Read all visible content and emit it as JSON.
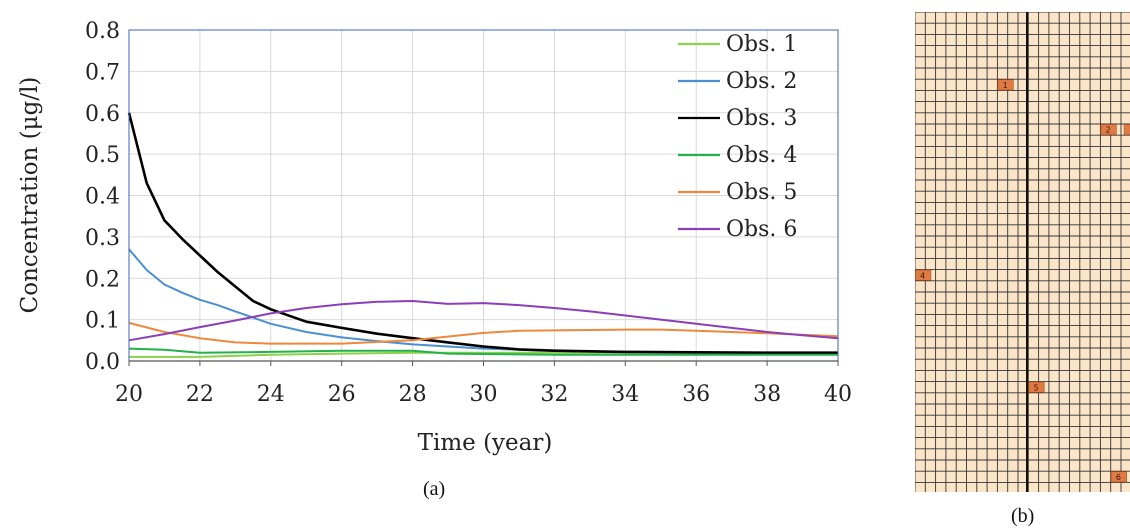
{
  "chart_data": {
    "type": "line",
    "xlabel": "Time (year)",
    "ylabel": "Concentration (μg/l)",
    "xlim": [
      20,
      40
    ],
    "ylim": [
      0,
      0.8
    ],
    "xticks": [
      20,
      22,
      24,
      26,
      28,
      30,
      32,
      34,
      36,
      38,
      40
    ],
    "xtick_labels": [
      "20",
      "22",
      "24",
      "26",
      "28",
      "30",
      "32",
      "34",
      "36",
      "38",
      "40"
    ],
    "yticks": [
      0,
      0.1,
      0.2,
      0.3,
      0.4,
      0.5,
      0.6,
      0.7,
      0.8
    ],
    "ytick_labels": [
      "0.0",
      "0.1",
      "0.2",
      "0.3",
      "0.4",
      "0.5",
      "0.6",
      "0.7",
      "0.8"
    ],
    "grid": true,
    "legend_position": "top-right",
    "series": [
      {
        "name": "Obs. 1",
        "color": "#8cd14b",
        "x": [
          20,
          22,
          24,
          26,
          28,
          30,
          32,
          34,
          36,
          38,
          40
        ],
        "y": [
          0.01,
          0.01,
          0.015,
          0.018,
          0.02,
          0.02,
          0.02,
          0.02,
          0.02,
          0.02,
          0.02
        ]
      },
      {
        "name": "Obs. 2",
        "color": "#4a90d0",
        "x": [
          20,
          20.5,
          21,
          21.5,
          22,
          22.5,
          23,
          23.5,
          24,
          25,
          26,
          27,
          28,
          30,
          32,
          34,
          36,
          38,
          40
        ],
        "y": [
          0.27,
          0.22,
          0.185,
          0.165,
          0.148,
          0.135,
          0.12,
          0.105,
          0.09,
          0.07,
          0.057,
          0.048,
          0.04,
          0.03,
          0.025,
          0.022,
          0.02,
          0.02,
          0.02
        ]
      },
      {
        "name": "Obs. 3",
        "color": "#000000",
        "x": [
          20,
          20.5,
          21,
          21.5,
          22,
          22.5,
          23,
          23.5,
          24,
          25,
          26,
          27,
          28,
          29,
          30,
          31,
          32,
          34,
          36,
          38,
          40
        ],
        "y": [
          0.6,
          0.43,
          0.34,
          0.295,
          0.255,
          0.215,
          0.18,
          0.145,
          0.125,
          0.095,
          0.08,
          0.066,
          0.055,
          0.045,
          0.035,
          0.028,
          0.025,
          0.022,
          0.021,
          0.02,
          0.02
        ]
      },
      {
        "name": "Obs. 4",
        "color": "#22b14c",
        "x": [
          20,
          21,
          22,
          24,
          26,
          28,
          29,
          30,
          32,
          34,
          36,
          38,
          40
        ],
        "y": [
          0.03,
          0.027,
          0.02,
          0.022,
          0.025,
          0.025,
          0.018,
          0.017,
          0.015,
          0.015,
          0.015,
          0.015,
          0.015
        ]
      },
      {
        "name": "Obs. 5",
        "color": "#f0883c",
        "x": [
          20,
          21,
          22,
          23,
          24,
          26,
          28,
          30,
          31,
          32,
          34,
          35,
          36,
          38,
          40
        ],
        "y": [
          0.092,
          0.07,
          0.055,
          0.045,
          0.042,
          0.042,
          0.05,
          0.068,
          0.073,
          0.074,
          0.076,
          0.076,
          0.073,
          0.067,
          0.06
        ]
      },
      {
        "name": "Obs. 6",
        "color": "#8a3fb8",
        "x": [
          20,
          21,
          22,
          23,
          24,
          25,
          26,
          27,
          28,
          29,
          30,
          31,
          32,
          33,
          34,
          35,
          36,
          37,
          38,
          39,
          40
        ],
        "y": [
          0.05,
          0.065,
          0.082,
          0.098,
          0.115,
          0.128,
          0.137,
          0.143,
          0.145,
          0.138,
          0.14,
          0.135,
          0.128,
          0.12,
          0.11,
          0.1,
          0.09,
          0.08,
          0.07,
          0.062,
          0.055
        ]
      }
    ]
  },
  "captions": {
    "panel_a": "(a)",
    "panel_b": "(b)"
  },
  "grid_map": {
    "cell_fill": "#fbe5c8",
    "line_color": "#333333",
    "marker_fill": "#e07a45",
    "markers": [
      {
        "label": "1"
      },
      {
        "label": "2"
      },
      {
        "label": "4"
      },
      {
        "label": "5"
      },
      {
        "label": "6"
      }
    ]
  }
}
